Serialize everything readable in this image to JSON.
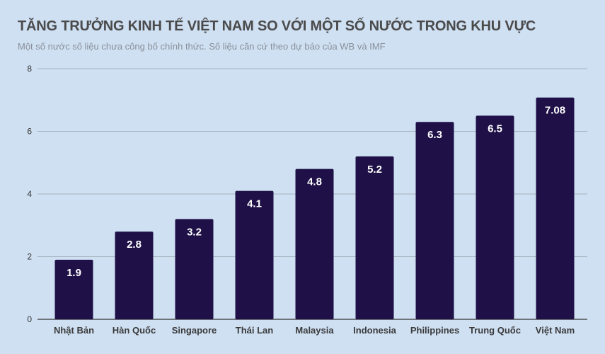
{
  "colors": {
    "background": "#cfe0f3",
    "bar": "#1f1147",
    "grid": "#9aa3ad"
  },
  "chart_data": {
    "type": "bar",
    "title": "TĂNG TRƯỞNG KINH TẾ VIỆT NAM SO VỚI MỘT SỐ NƯỚC TRONG KHU VỰC",
    "subtitle": "Một số nước số liệu chưa công bố chính thức. Số liệu căn cứ theo dự báo của WB và IMF",
    "categories": [
      "Nhật Bản",
      "Hàn Quốc",
      "Singapore",
      "Thái Lan",
      "Malaysia",
      "Indonesia",
      "Philippines",
      "Trung Quốc",
      "Việt Nam"
    ],
    "values": [
      1.9,
      2.8,
      3.2,
      4.1,
      4.8,
      5.2,
      6.3,
      6.5,
      7.08
    ],
    "value_labels": [
      "1.9",
      "2.8",
      "3.2",
      "4.1",
      "4.8",
      "5.2",
      "6.3",
      "6.5",
      "7.08"
    ],
    "yticks": [
      "0",
      "2",
      "4",
      "6",
      "8"
    ],
    "ylim": [
      0,
      8
    ],
    "grid": true,
    "legend": "none"
  }
}
